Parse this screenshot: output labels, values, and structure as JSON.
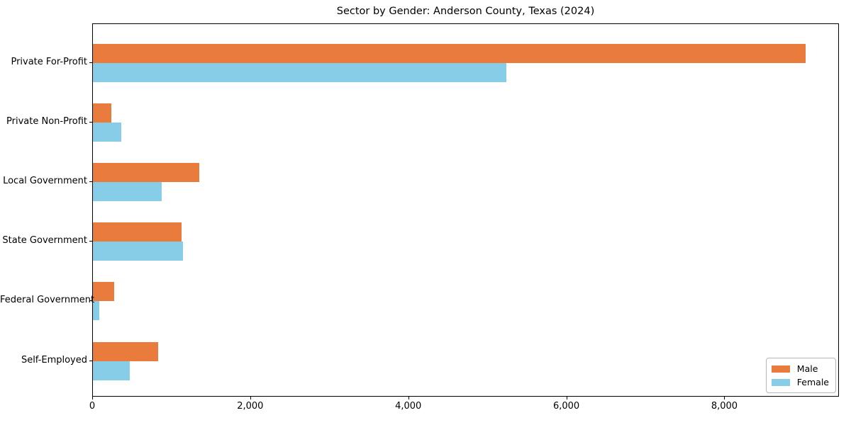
{
  "figure": {
    "title": "Sector by Gender: Anderson County, Texas (2024)"
  },
  "chart_data": {
    "type": "bar",
    "orientation": "horizontal",
    "title": "Sector by Gender: Anderson County, Texas (2024)",
    "categories": [
      "Private For-Profit",
      "Private Non-Profit",
      "Local Government",
      "State Government",
      "Federal Government",
      "Self-Employed"
    ],
    "series": [
      {
        "name": "Male",
        "color": "#E97C3C",
        "values": [
          9020,
          230,
          1350,
          1120,
          270,
          830
        ]
      },
      {
        "name": "Female",
        "color": "#87CDE8",
        "values": [
          5230,
          360,
          870,
          1140,
          80,
          470
        ]
      }
    ],
    "xlabel": "",
    "ylabel": "",
    "xlim": [
      0,
      9450
    ],
    "x_ticks": {
      "values": [
        0,
        2000,
        4000,
        6000,
        8000
      ],
      "labels": [
        "0",
        "2,000",
        "4,000",
        "6,000",
        "8,000"
      ]
    },
    "grid": false,
    "legend_position": "lower right"
  }
}
